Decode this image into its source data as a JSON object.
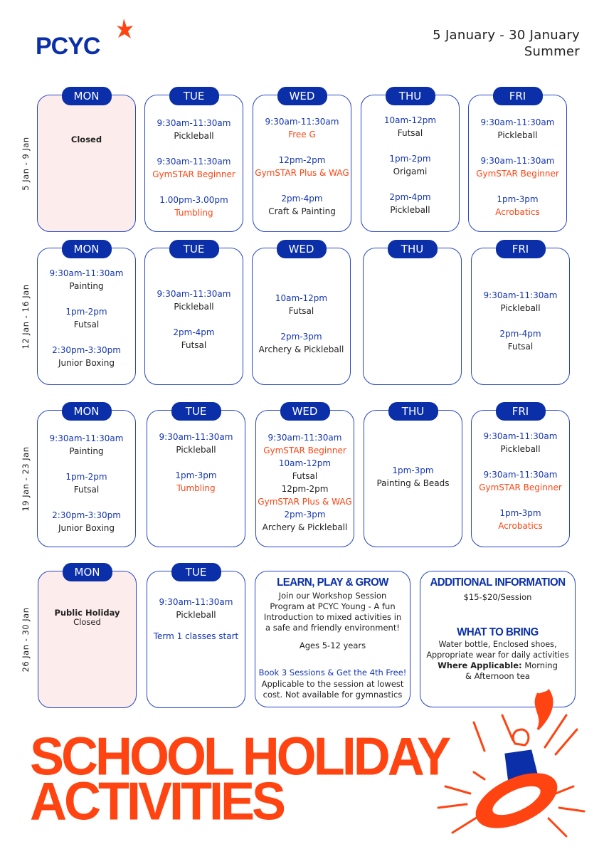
{
  "brand": {
    "name": "PCYC",
    "colors": {
      "blue": "#0a2fa8",
      "orange": "#ff4412",
      "closed_fill": "#fdecec"
    }
  },
  "header": {
    "date_range": "5 January - 30 January",
    "season": "Summer"
  },
  "weeks": [
    {
      "label": "5 Jan - 9 Jan",
      "days": [
        {
          "day": "MON",
          "closed": true,
          "note": "Closed",
          "items": []
        },
        {
          "day": "TUE",
          "items": [
            {
              "time": "9:30am-11:30am",
              "name": "Pickleball",
              "color": "black"
            },
            {
              "time": "9:30am-11:30am",
              "name": "GymSTAR Beginner",
              "color": "orange"
            },
            {
              "time": "1.00pm-3.00pm",
              "name": "Tumbling",
              "color": "orange"
            }
          ]
        },
        {
          "day": "WED",
          "items": [
            {
              "time": "9:30am-11:30am",
              "name": "Free G",
              "color": "orange"
            },
            {
              "time": "12pm-2pm",
              "name": "GymSTAR Plus & WAG",
              "color": "orange"
            },
            {
              "time": "2pm-4pm",
              "name": "Craft & Painting",
              "color": "black"
            }
          ]
        },
        {
          "day": "THU",
          "items": [
            {
              "time": "10am-12pm",
              "name": "Futsal",
              "color": "black"
            },
            {
              "time": "1pm-2pm",
              "name": "Origami",
              "color": "black"
            },
            {
              "time": "2pm-4pm",
              "name": "Pickleball",
              "color": "black"
            }
          ]
        },
        {
          "day": "FRI",
          "items": [
            {
              "time": "9:30am-11:30am",
              "name": "Pickleball",
              "color": "black"
            },
            {
              "time": "9:30am-11:30am",
              "name": "GymSTAR Beginner",
              "color": "orange"
            },
            {
              "time": "1pm-3pm",
              "name": "Acrobatics",
              "color": "orange"
            }
          ]
        }
      ]
    },
    {
      "label": "12 Jan - 16 Jan",
      "days": [
        {
          "day": "MON",
          "items": [
            {
              "time": "9:30am-11:30am",
              "name": "Painting",
              "color": "black"
            },
            {
              "time": "1pm-2pm",
              "name": "Futsal",
              "color": "black"
            },
            {
              "time": "2:30pm-3:30pm",
              "name": "Junior Boxing",
              "color": "black"
            }
          ]
        },
        {
          "day": "TUE",
          "items": [
            {
              "time": "9:30am-11:30am",
              "name": "Pickleball",
              "color": "black"
            },
            {
              "time": "2pm-4pm",
              "name": "Futsal",
              "color": "black"
            }
          ]
        },
        {
          "day": "WED",
          "items": [
            {
              "time": "10am-12pm",
              "name": "Futsal",
              "color": "black"
            },
            {
              "time": "2pm-3pm",
              "name": "Archery & Pickleball",
              "color": "black"
            }
          ]
        },
        {
          "day": "THU",
          "items": []
        },
        {
          "day": "FRI",
          "items": [
            {
              "time": "9:30am-11:30am",
              "name": "Pickleball",
              "color": "black"
            },
            {
              "time": "2pm-4pm",
              "name": "Futsal",
              "color": "black"
            }
          ]
        }
      ]
    },
    {
      "label": "19 Jan - 23 Jan",
      "days": [
        {
          "day": "MON",
          "items": [
            {
              "time": "9:30am-11:30am",
              "name": "Painting",
              "color": "black"
            },
            {
              "time": "1pm-2pm",
              "name": "Futsal",
              "color": "black"
            },
            {
              "time": "2:30pm-3:30pm",
              "name": "Junior Boxing",
              "color": "black"
            }
          ]
        },
        {
          "day": "TUE",
          "items": [
            {
              "time": "9:30am-11:30am",
              "name": "Pickleball",
              "color": "black"
            },
            {
              "time": "1pm-3pm",
              "name": "Tumbling",
              "color": "orange"
            }
          ]
        },
        {
          "day": "WED",
          "items": [
            {
              "time": "9:30am-11:30am",
              "name": "GymSTAR Beginner",
              "color": "orange"
            },
            {
              "time": "10am-12pm",
              "name": "Futsal",
              "color": "black"
            },
            {
              "time": "12pm-2pm",
              "name": "GymSTAR Plus & WAG",
              "color": "orange",
              "time_color": "black"
            },
            {
              "time": "2pm-3pm",
              "name": "Archery & Pickleball",
              "color": "black"
            }
          ]
        },
        {
          "day": "THU",
          "items": [
            {
              "time": "1pm-3pm",
              "name": "Painting & Beads",
              "color": "black"
            }
          ]
        },
        {
          "day": "FRI",
          "items": [
            {
              "time": "9:30am-11:30am",
              "name": "Pickleball",
              "color": "black"
            },
            {
              "time": "9:30am-11:30am",
              "name": "GymSTAR Beginner",
              "color": "orange"
            },
            {
              "time": "1pm-3pm",
              "name": "Acrobatics",
              "color": "orange"
            }
          ]
        }
      ]
    },
    {
      "label": "26 Jan - 30 Jan",
      "days": [
        {
          "day": "MON",
          "closed": true,
          "note": "Public Holiday",
          "note2": "Closed",
          "items": []
        },
        {
          "day": "TUE",
          "items": [
            {
              "time": "9:30am-11:30am",
              "name": "Pickleball",
              "color": "black"
            },
            {
              "time": "",
              "name": "Term 1 classes start",
              "color": "blue"
            }
          ]
        }
      ]
    }
  ],
  "learn": {
    "title": "LEARN, PLAY & GROW",
    "body": "Join our Workshop Session Program at PCYC Young - A fun Introduction to mixed activities in a safe and friendly environment!",
    "ages": "Ages 5-12 years",
    "offer": "Book 3 Sessions & Get the 4th Free!",
    "offer_note": "Applicable to the session at lowest cost. Not available for gymnastics"
  },
  "additional": {
    "title": "ADDITIONAL INFORMATION",
    "price": "$15-$20/Session",
    "bring_title": "WHAT TO BRING",
    "bring": "Water bottle, Enclosed shoes, Appropriate wear for daily activities",
    "applicable_label": "Where Applicable:",
    "applicable": "Morning & Afternoon tea"
  },
  "title": {
    "line1": "SCHOOL HOLIDAY",
    "line2": "ACTIVITIES"
  }
}
